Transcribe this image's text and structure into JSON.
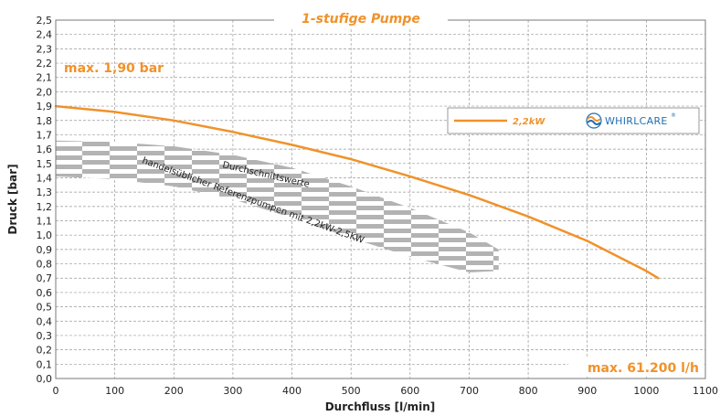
{
  "chart_data": {
    "type": "line",
    "title": "1-stufige Pumpe",
    "xlabel": "Durchfluss [l/min]",
    "ylabel": "Druck [bar]",
    "xlim": [
      0,
      1100
    ],
    "ylim": [
      0,
      2.5
    ],
    "x_ticks": [
      "0",
      "100",
      "200",
      "300",
      "400",
      "500",
      "600",
      "700",
      "800",
      "900",
      "1000",
      "1100"
    ],
    "y_ticks": [
      "0,0",
      "0,1",
      "0,2",
      "0,3",
      "0,4",
      "0,5",
      "0,6",
      "0,7",
      "0,8",
      "0,9",
      "1,0",
      "1,1",
      "1,2",
      "1,3",
      "1,4",
      "1,5",
      "1,6",
      "1,7",
      "1,8",
      "1,9",
      "2,0",
      "2,1",
      "2,2",
      "2,3",
      "2,4",
      "2,5"
    ],
    "grid": true,
    "legend_position": "top-right",
    "series": [
      {
        "name": "2,2kW",
        "color": "#f0922b",
        "x": [
          0,
          100,
          200,
          300,
          400,
          500,
          600,
          700,
          800,
          900,
          1000,
          1020
        ],
        "y": [
          1.9,
          1.86,
          1.8,
          1.72,
          1.63,
          1.53,
          1.41,
          1.28,
          1.13,
          0.96,
          0.75,
          0.7
        ]
      }
    ],
    "reference_band": {
      "label_line1": "Durchschnittswerte",
      "label_line2": "handelsüblicher Referenzpumpen mit 2,2kW-2,5KW",
      "color": "#b3b3b3",
      "x_upper": [
        0,
        100,
        200,
        300,
        400,
        500,
        600,
        700,
        750
      ],
      "y_upper": [
        1.66,
        1.65,
        1.62,
        1.56,
        1.47,
        1.34,
        1.19,
        1.02,
        0.9
      ],
      "x_lower": [
        750,
        700,
        600,
        500,
        400,
        300,
        200,
        100,
        0
      ],
      "y_lower": [
        0.75,
        0.74,
        0.85,
        0.98,
        1.12,
        1.25,
        1.34,
        1.39,
        1.41
      ]
    },
    "annotations": {
      "max_pressure": "max. 1,90 bar",
      "max_flow": "max. 61.200 l/h"
    },
    "brand": {
      "name": "WHIRLCARE",
      "mark": "®",
      "colors": {
        "orange": "#f0922b",
        "blue": "#1f6fb5"
      },
      "icon": "whirlcare-logo-icon"
    }
  }
}
